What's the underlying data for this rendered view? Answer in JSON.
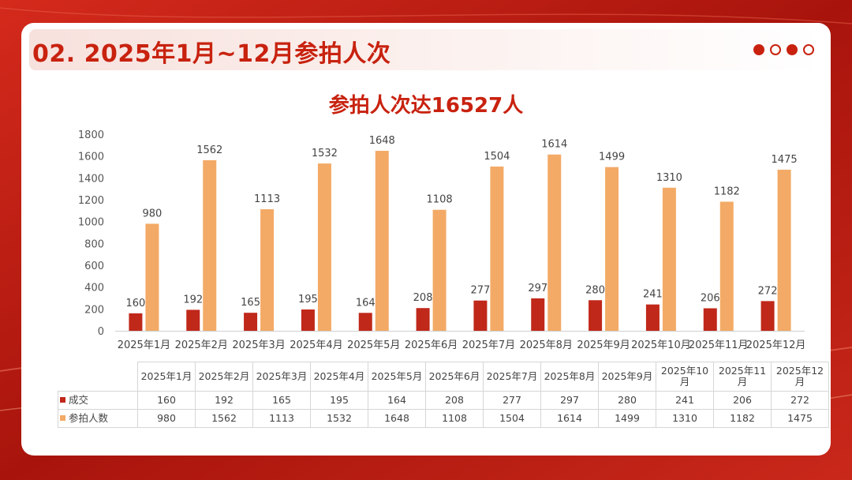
{
  "header": {
    "title": "02. 2025年1月~12月参拍人次",
    "dots": [
      true,
      false,
      true,
      false
    ]
  },
  "colors": {
    "deal": "#c0281a",
    "participants": "#f3aa66",
    "accent": "#c8220f"
  },
  "chart_data": {
    "type": "bar",
    "title": "参拍人次达16527人",
    "xlabel": "",
    "ylabel": "",
    "ylim": [
      0,
      1800
    ],
    "yticks": [
      0,
      200,
      400,
      600,
      800,
      1000,
      1200,
      1400,
      1600,
      1800
    ],
    "grid": false,
    "legend": "table-bottom",
    "categories": [
      "2025年1月",
      "2025年2月",
      "2025年3月",
      "2025年4月",
      "2025年5月",
      "2025年6月",
      "2025年7月",
      "2025年8月",
      "2025年9月",
      "2025年10月",
      "2025年11月",
      "2025年12月"
    ],
    "table_categories": [
      "2025年1月",
      "2025年2月",
      "2025年3月",
      "2025年4月",
      "2025年5月",
      "2025年6月",
      "2025年7月",
      "2025年8月",
      "2025年9月",
      "2025年10\n月",
      "2025年11月",
      "2025年12月"
    ],
    "series": [
      {
        "name": "成交",
        "values": [
          160,
          192,
          165,
          195,
          164,
          208,
          277,
          297,
          280,
          241,
          206,
          272
        ]
      },
      {
        "name": "参拍人数",
        "values": [
          980,
          1562,
          1113,
          1532,
          1648,
          1108,
          1504,
          1614,
          1499,
          1310,
          1182,
          1475
        ]
      }
    ]
  }
}
